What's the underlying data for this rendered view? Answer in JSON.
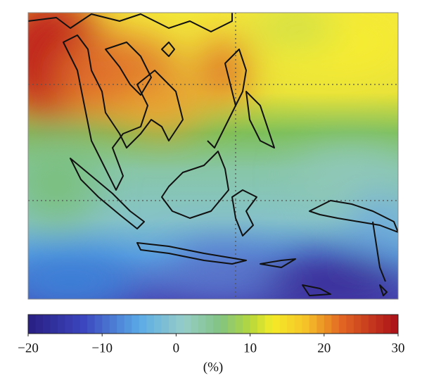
{
  "colorbar": {
    "colormap": "jet",
    "clim": [
      -20,
      30
    ],
    "ticks": [
      {
        "value": -20,
        "label": "−20"
      },
      {
        "value": -10,
        "label": "−10"
      },
      0,
      10,
      20,
      30
    ],
    "label": "(%)"
  }
}
